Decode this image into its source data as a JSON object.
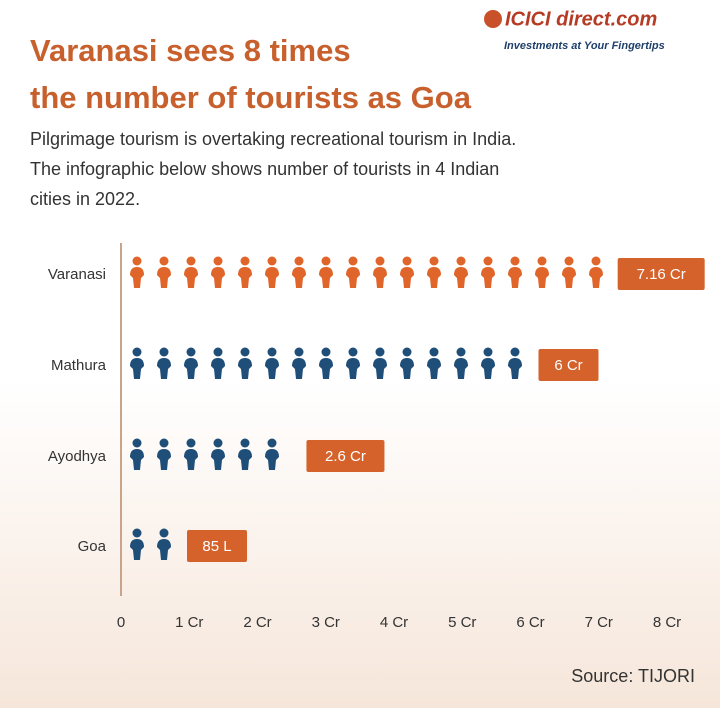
{
  "chart_data": {
    "type": "pictogram-bar",
    "logo": "ICICI direct.com",
    "tagline": "Investments at Your Fingertips",
    "title": [
      "Varanasi sees 8 times",
      "the number of tourists as Goa"
    ],
    "subtitle": [
      "Pilgrimage tourism is overtaking recreational tourism in India.",
      "The infographic below shows number of tourists in 4 Indian",
      "cities in 2022."
    ],
    "categories": [
      "Varanasi",
      "Mathura",
      "Ayodhya",
      "Goa"
    ],
    "values": [
      7.16,
      6,
      2.6,
      0.85
    ],
    "value_labels": [
      "7.16 Cr",
      "6 Cr",
      "2.6 Cr",
      "85 L"
    ],
    "colors": [
      "#e0652a",
      "#1f4e79",
      "#1f4e79",
      "#1f4e79"
    ],
    "label_color": "#d4622a",
    "xlim": [
      0,
      8
    ],
    "xticks": [
      0,
      {
        "value": 1,
        "label": "1 Cr"
      },
      {
        "value": 2,
        "label": "2 Cr"
      },
      {
        "value": 3,
        "label": "3 Cr"
      },
      {
        "value": 4,
        "label": "4 Cr"
      },
      {
        "value": 5,
        "label": "5 Cr"
      },
      {
        "value": 6,
        "label": "6 Cr"
      },
      {
        "value": 7,
        "label": "7 Cr"
      },
      {
        "value": 8,
        "label": "8 Cr"
      }
    ],
    "source": "Source: TIJORI"
  }
}
